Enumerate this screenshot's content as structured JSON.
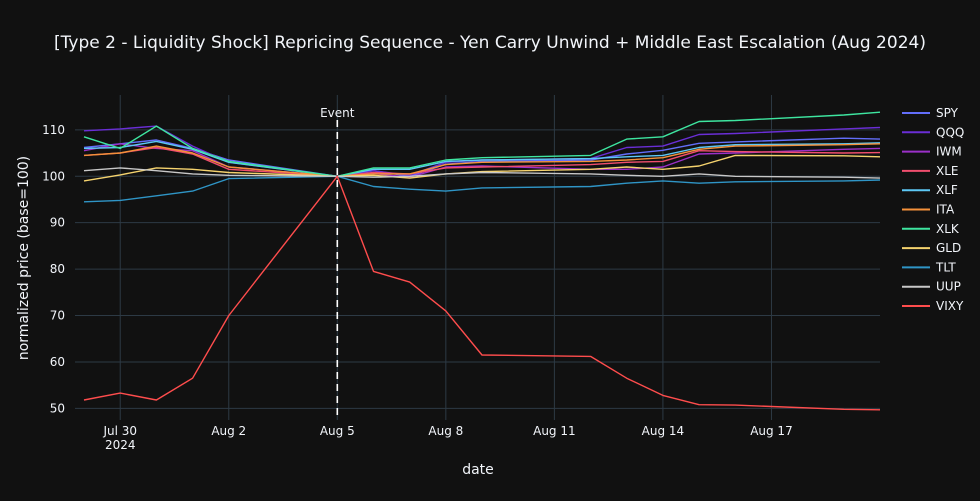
{
  "chart_data": {
    "type": "line",
    "title": "[Type 2 - Liquidity Shock] Repricing Sequence - Yen Carry Unwind + Middle East Escalation (Aug 2024)",
    "xlabel": "date",
    "ylabel": "normalized price (base=100)",
    "x_tick_labels": [
      "Jul 30",
      "Aug 2",
      "Aug 5",
      "Aug 8",
      "Aug 11",
      "Aug 14",
      "Aug 17"
    ],
    "x_tick_year": "2024",
    "y_ticks": [
      50,
      60,
      70,
      80,
      90,
      100,
      110
    ],
    "ylim": [
      47.5,
      117.5
    ],
    "grid": true,
    "legend_position": "right",
    "event_marker": {
      "date": "2024-08-05",
      "label": "Event"
    },
    "x": [
      "2024-07-29",
      "2024-07-30",
      "2024-07-31",
      "2024-08-01",
      "2024-08-02",
      "2024-08-05",
      "2024-08-06",
      "2024-08-07",
      "2024-08-08",
      "2024-08-09",
      "2024-08-12",
      "2024-08-13",
      "2024-08-14",
      "2024-08-15",
      "2024-08-16",
      "2024-08-19",
      "2024-08-20"
    ],
    "series": [
      {
        "name": "SPY",
        "color": "#636efa",
        "values": [
          106.2,
          107.0,
          107.8,
          106.0,
          103.5,
          100.0,
          101.2,
          100.0,
          102.6,
          103.2,
          103.5,
          104.8,
          105.6,
          107.1,
          107.4,
          108.2,
          108.0
        ]
      },
      {
        "name": "QQQ",
        "color": "#6a2ed6",
        "values": [
          109.8,
          110.2,
          110.8,
          106.5,
          103.0,
          100.0,
          101.2,
          100.2,
          103.0,
          103.5,
          103.8,
          106.2,
          106.5,
          109.0,
          109.2,
          110.2,
          110.5
        ]
      },
      {
        "name": "IWM",
        "color": "#9b30c8",
        "values": [
          105.5,
          107.0,
          106.0,
          105.5,
          102.0,
          100.0,
          100.6,
          99.8,
          102.0,
          102.2,
          101.5,
          101.5,
          102.0,
          104.8,
          105.0,
          105.8,
          106.0
        ]
      },
      {
        "name": "XLE",
        "color": "#f04e6e",
        "values": [
          104.5,
          105.0,
          106.2,
          104.8,
          101.5,
          100.0,
          100.8,
          100.5,
          101.8,
          102.0,
          102.5,
          103.0,
          103.2,
          105.5,
          105.3,
          105.0,
          105.1
        ]
      },
      {
        "name": "XLF",
        "color": "#5dc8f5",
        "values": [
          106.0,
          106.2,
          107.5,
          105.8,
          103.0,
          100.0,
          101.5,
          101.5,
          103.2,
          103.5,
          103.8,
          104.2,
          104.5,
          106.2,
          106.8,
          107.0,
          107.2
        ]
      },
      {
        "name": "ITA",
        "color": "#f5913a",
        "values": [
          104.5,
          105.0,
          106.5,
          105.0,
          102.0,
          100.0,
          100.5,
          100.5,
          102.5,
          103.0,
          103.2,
          103.5,
          104.0,
          105.8,
          106.5,
          106.8,
          107.0
        ]
      },
      {
        "name": "XLK",
        "color": "#3ee6a0",
        "values": [
          108.5,
          106.0,
          110.8,
          106.0,
          103.2,
          100.0,
          101.8,
          101.8,
          103.5,
          104.0,
          104.5,
          108.0,
          108.5,
          111.8,
          112.0,
          113.2,
          113.8
        ]
      },
      {
        "name": "GLD",
        "color": "#f5d36e",
        "values": [
          99.0,
          100.3,
          101.8,
          101.5,
          100.8,
          100.0,
          100.2,
          99.6,
          100.5,
          101.0,
          101.5,
          102.0,
          101.5,
          102.2,
          104.5,
          104.4,
          104.2
        ]
      },
      {
        "name": "TLT",
        "color": "#2f95c6",
        "values": [
          94.5,
          94.8,
          95.8,
          96.8,
          99.5,
          100.0,
          97.8,
          97.2,
          96.8,
          97.5,
          97.8,
          98.5,
          99.0,
          98.5,
          98.8,
          99.0,
          99.2
        ]
      },
      {
        "name": "UUP",
        "color": "#c8c8c8",
        "values": [
          101.2,
          101.8,
          101.2,
          100.5,
          100.2,
          100.0,
          99.8,
          100.0,
          100.5,
          100.8,
          100.5,
          100.2,
          100.0,
          100.5,
          100.0,
          99.8,
          99.6
        ]
      },
      {
        "name": "VIXY",
        "color": "#ff4d4d",
        "values": [
          51.8,
          53.3,
          51.8,
          56.5,
          70.0,
          100.0,
          79.5,
          77.2,
          71.0,
          61.5,
          61.2,
          56.5,
          52.8,
          50.8,
          50.7,
          49.8,
          49.7
        ]
      }
    ]
  }
}
